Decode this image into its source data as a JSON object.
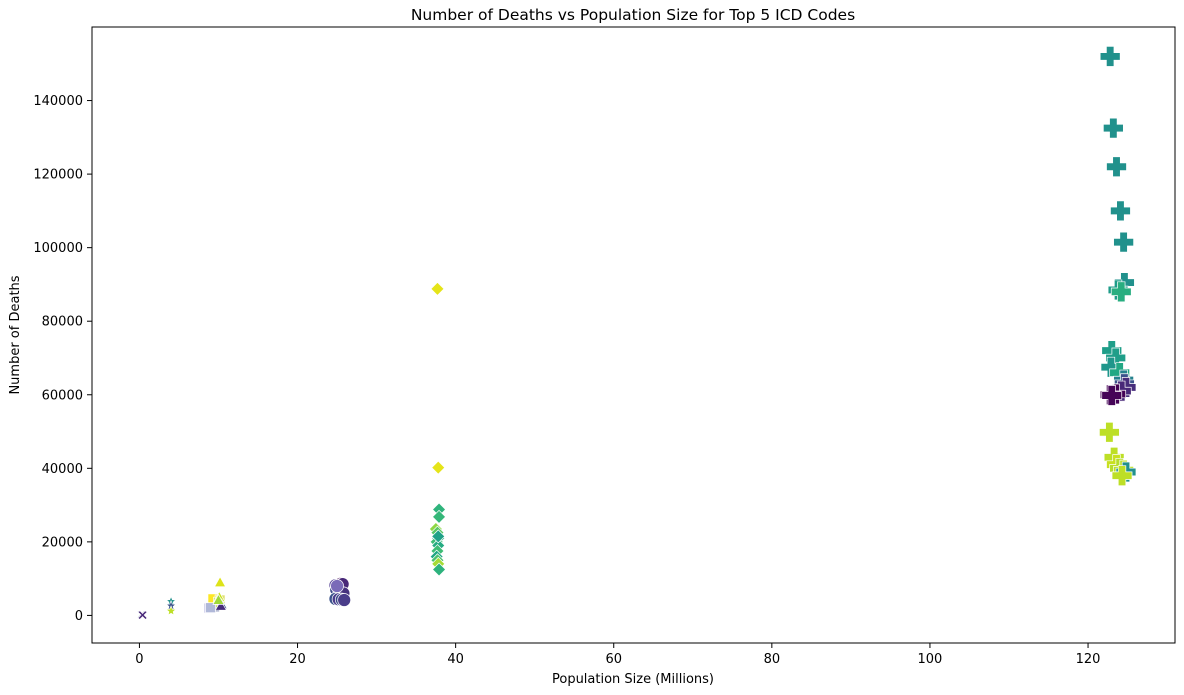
{
  "chart_data": {
    "type": "scatter",
    "title": "Number of Deaths vs Population Size for Top 5 ICD Codes",
    "xlabel": "Population Size (Millions)",
    "ylabel": "Number of Deaths",
    "xlim": [
      -6,
      131
    ],
    "ylim": [
      -7500,
      160000
    ],
    "xticks": [
      0,
      20,
      40,
      60,
      80,
      100,
      120
    ],
    "yticks": [
      0,
      20000,
      40000,
      60000,
      80000,
      100000,
      120000,
      140000
    ],
    "grid": false,
    "legend": "none",
    "series": [
      {
        "marker": "x",
        "points": [
          [
            0.3,
            200
          ],
          [
            0.4,
            100
          ]
        ],
        "colors": [
          "#3b528b",
          "#482878"
        ]
      },
      {
        "marker": "star",
        "points": [
          [
            4.0,
            3800
          ],
          [
            4.0,
            2600
          ],
          [
            4.0,
            1200
          ]
        ],
        "colors": [
          "#21918c",
          "#3b528b",
          "#bddf26"
        ]
      },
      {
        "marker": "square",
        "points": [
          [
            8.8,
            2000
          ],
          [
            9.2,
            2200
          ],
          [
            9.5,
            2400
          ],
          [
            9.7,
            3000
          ],
          [
            9.3,
            4500
          ],
          [
            10.0,
            3600
          ],
          [
            10.2,
            4200
          ],
          [
            9.0,
            2100
          ]
        ],
        "colors": [
          "#c2c2e6",
          "#9ea6cf",
          "#3e4a89",
          "#26828e",
          "#fde725",
          "#c9d23a",
          "#e0e070",
          "#b0b8d8"
        ]
      },
      {
        "marker": "triangle",
        "points": [
          [
            10.2,
            9000
          ],
          [
            10.1,
            5000
          ],
          [
            10.4,
            3000
          ],
          [
            10.3,
            2600
          ],
          [
            10.0,
            4200
          ]
        ],
        "colors": [
          "#dde318",
          "#c8e020",
          "#3b528b",
          "#472d7b",
          "#9fd938"
        ]
      },
      {
        "marker": "circle",
        "points": [
          [
            24.8,
            8200
          ],
          [
            25.0,
            7800
          ],
          [
            25.5,
            8600
          ],
          [
            25.7,
            8500
          ],
          [
            24.9,
            7000
          ],
          [
            25.3,
            6400
          ],
          [
            25.8,
            6000
          ],
          [
            24.8,
            4500
          ],
          [
            25.2,
            4400
          ],
          [
            25.6,
            4300
          ],
          [
            25.9,
            4200
          ],
          [
            25.0,
            8000
          ]
        ],
        "colors": [
          "#5c4a99",
          "#6a5aa8",
          "#440154",
          "#482878",
          "#3e4a89",
          "#5b4b9b",
          "#46327e",
          "#3b528b",
          "#4b3d8c",
          "#3e4a89",
          "#4a3d8a",
          "#7a6ab8"
        ]
      },
      {
        "marker": "diamond",
        "points": [
          [
            37.7,
            88800
          ],
          [
            37.8,
            40200
          ],
          [
            37.9,
            28800
          ],
          [
            37.9,
            26800
          ],
          [
            37.5,
            23500
          ],
          [
            37.7,
            22500
          ],
          [
            37.8,
            21000
          ],
          [
            37.6,
            20000
          ],
          [
            37.8,
            19000
          ],
          [
            37.7,
            17500
          ],
          [
            37.6,
            16000
          ],
          [
            37.7,
            15000
          ],
          [
            37.8,
            14000
          ],
          [
            37.9,
            12500
          ],
          [
            37.8,
            21500
          ]
        ],
        "colors": [
          "#e5e419",
          "#e5e419",
          "#2fb47c",
          "#35b779",
          "#8fd744",
          "#58c765",
          "#27ad81",
          "#3dbc74",
          "#25ab82",
          "#3dbc74",
          "#21a685",
          "#4ac16d",
          "#a5db36",
          "#2db27d",
          "#1fa187"
        ]
      },
      {
        "marker": "plus",
        "points": [
          [
            122.8,
            152000
          ],
          [
            123.2,
            132500
          ],
          [
            123.6,
            122000
          ],
          [
            124.1,
            110000
          ],
          [
            124.5,
            101500
          ],
          [
            124.6,
            90500
          ],
          [
            123.8,
            88500
          ],
          [
            124.2,
            88000
          ],
          [
            123.0,
            72000
          ],
          [
            123.5,
            70000
          ],
          [
            122.9,
            67500
          ],
          [
            124.0,
            66000
          ],
          [
            124.5,
            64000
          ],
          [
            124.6,
            63000
          ],
          [
            124.8,
            62000
          ],
          [
            124.2,
            61000
          ],
          [
            123.5,
            60200
          ],
          [
            122.8,
            60000
          ],
          [
            123.0,
            59800
          ],
          [
            122.7,
            49800
          ],
          [
            123.3,
            43000
          ],
          [
            123.6,
            41000
          ],
          [
            124.0,
            40000
          ],
          [
            124.5,
            39500
          ],
          [
            124.8,
            39000
          ],
          [
            124.3,
            38000
          ]
        ],
        "colors": [
          "#21918c",
          "#21918c",
          "#21918c",
          "#21918c",
          "#21918c",
          "#21918c",
          "#1e9c89",
          "#28ae80",
          "#1f9e89",
          "#1f9e89",
          "#1f968b",
          "#22a884",
          "#26828e",
          "#3b528b",
          "#472d7b",
          "#482878",
          "#440154",
          "#440154",
          "#450457",
          "#bddf26",
          "#bddf26",
          "#c8e020",
          "#b5de2b",
          "#bddf26",
          "#21918c",
          "#bddf26"
        ]
      }
    ]
  }
}
